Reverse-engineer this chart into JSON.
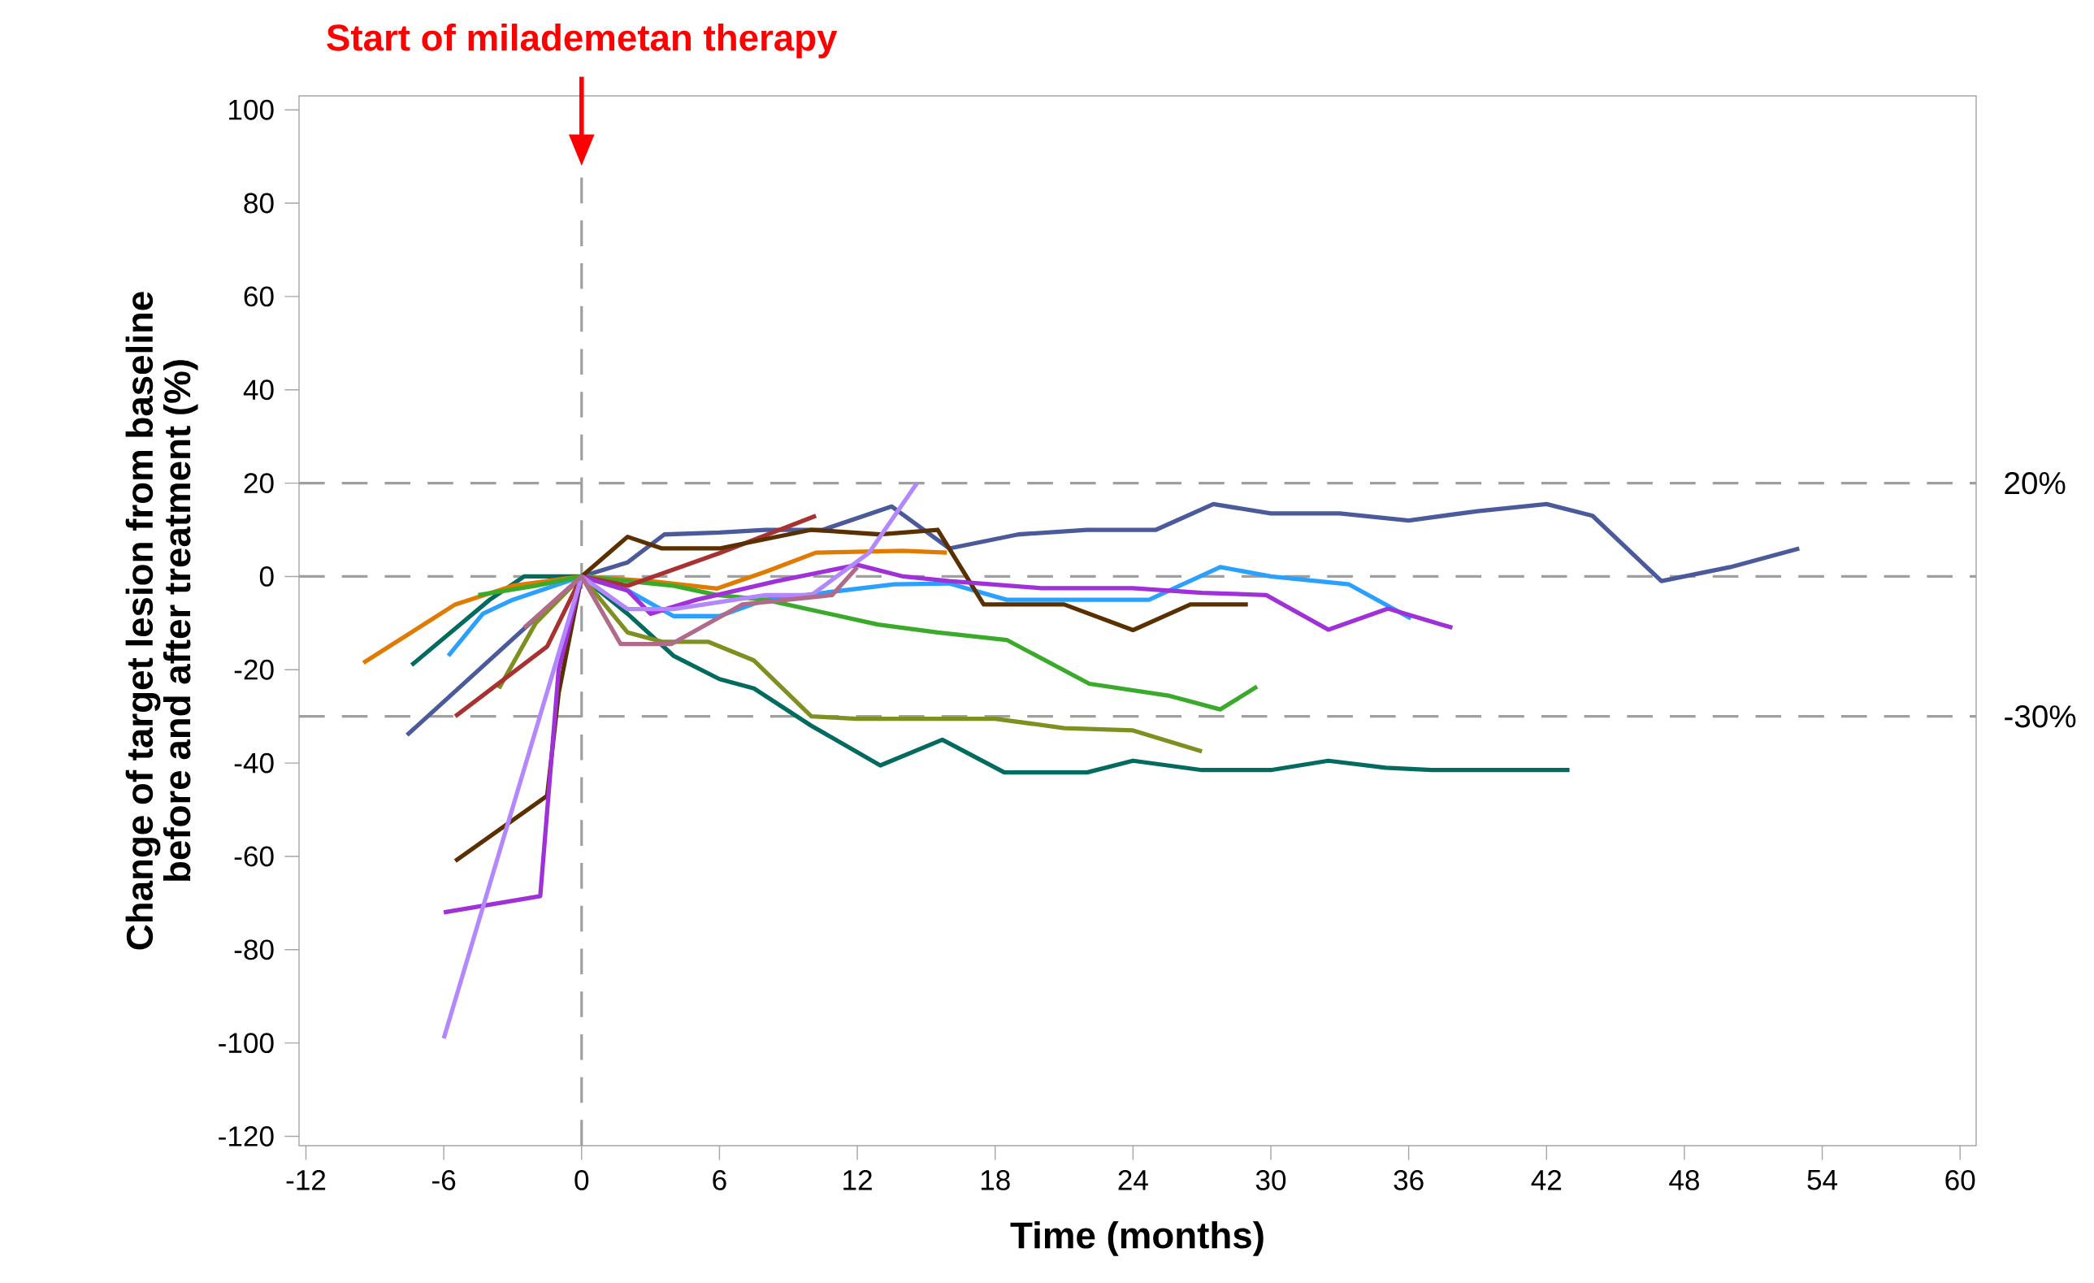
{
  "chart_data": {
    "type": "line",
    "xlabel": "Time (months)",
    "ylabel": "Change of target lesion from baseline before and after treatment (%)",
    "annotations": [
      {
        "text": "Start of milademetan therapy",
        "x": 0,
        "y": 88
      }
    ],
    "xlim": [
      -12.3,
      60.7
    ],
    "ylim": [
      -122,
      103
    ],
    "xticks": [
      -12,
      -6,
      0,
      6,
      12,
      18,
      24,
      30,
      36,
      42,
      48,
      54,
      60
    ],
    "yticks": [
      -120,
      -100,
      -80,
      -60,
      -40,
      -20,
      0,
      20,
      40,
      60,
      80,
      100
    ],
    "ref_lines": [
      {
        "axis": "y",
        "value": 20,
        "label": "20%",
        "line_style": "dashed"
      },
      {
        "axis": "y",
        "value": 0,
        "line_style": "dashed"
      },
      {
        "axis": "y",
        "value": -30,
        "label": "-30%",
        "line_style": "dashed"
      },
      {
        "axis": "x",
        "value": 0,
        "line_style": "dashed"
      }
    ],
    "series": [
      {
        "color": "#4a5a9a",
        "x": [
          -7.6,
          0,
          2,
          3.6,
          6,
          8,
          10.5,
          13.5,
          16,
          19,
          22,
          25,
          27.5,
          30,
          33,
          36,
          39,
          42,
          44,
          47,
          50,
          53
        ],
        "values": [
          -34,
          0,
          3,
          9,
          9.4,
          10,
          10,
          15,
          6,
          9,
          10,
          10,
          15.5,
          13.5,
          13.5,
          12,
          14,
          15.5,
          13,
          -1,
          2,
          6
        ]
      },
      {
        "color": "#006b5e",
        "x": [
          -7.4,
          -4,
          -2.5,
          0,
          2,
          4,
          6,
          7.5,
          10,
          13,
          15.7,
          18.4,
          22,
          24,
          27,
          30,
          32.5,
          35,
          37,
          43
        ],
        "values": [
          -19,
          -5,
          0,
          0,
          -8,
          -17,
          -22,
          -24,
          -32,
          -40.5,
          -35,
          -42,
          -42,
          -39.5,
          -41.5,
          -41.5,
          -39.5,
          -41,
          -41.5,
          -41.5
        ]
      },
      {
        "color": "#e07b00",
        "x": [
          -9.5,
          -5.5,
          -3,
          0,
          3,
          5.9,
          8,
          10.2,
          14,
          15.9
        ],
        "values": [
          -18.5,
          -6,
          -2,
          0,
          -1,
          -2.6,
          1,
          5.1,
          5.5,
          5.1
        ]
      },
      {
        "color": "#2aa0ff",
        "x": [
          -5.8,
          -4.3,
          -3,
          0,
          2,
          4,
          6,
          8,
          13.6,
          16,
          18.5,
          24.7,
          27.8,
          30,
          33.4,
          36.1
        ],
        "values": [
          -17,
          -8,
          -5,
          0,
          -3,
          -8.5,
          -8.5,
          -5,
          -1.7,
          -1.5,
          -5,
          -5,
          2,
          0,
          -1.7,
          -9
        ]
      },
      {
        "color": "#3aaa2a",
        "x": [
          -4.5,
          -2,
          0,
          4,
          5.9,
          8,
          12.9,
          15.5,
          18.5,
          22.1,
          25.6,
          27.8,
          29.4
        ],
        "values": [
          -4,
          -2,
          0,
          -2,
          -4,
          -5,
          -10.3,
          -12,
          -13.6,
          -23,
          -25.6,
          -28.5,
          -23.6
        ]
      },
      {
        "color": "#7f8f20",
        "x": [
          -3.6,
          -2,
          0,
          2,
          3.5,
          5.5,
          7.5,
          10,
          12,
          18,
          21,
          24,
          27
        ],
        "values": [
          -24,
          -10,
          0,
          -12,
          -14,
          -14,
          -18,
          -30,
          -30.5,
          -30.5,
          -32.5,
          -33,
          -37.5
        ]
      },
      {
        "color": "#a83232",
        "x": [
          -5.5,
          -1.5,
          0,
          2,
          6,
          10.2
        ],
        "values": [
          -30,
          -15,
          0,
          -2,
          5,
          13
        ]
      },
      {
        "color": "#5a3000",
        "x": [
          -5.5,
          -1.5,
          -1,
          0,
          2,
          3.5,
          6,
          8,
          10,
          13,
          15.5,
          17.5,
          21,
          24,
          26.5,
          29
        ],
        "values": [
          -61,
          -47,
          -25,
          0,
          8.5,
          6,
          6,
          8,
          10,
          9,
          10,
          -6,
          -6,
          -11.5,
          -6,
          -6
        ]
      },
      {
        "color": "#a030d8",
        "x": [
          -6,
          -1.8,
          -1,
          0,
          2,
          3,
          5,
          8.5,
          12,
          14,
          16,
          20,
          24,
          27,
          29.8,
          32.5,
          35.1,
          37.9
        ],
        "values": [
          -72,
          -68.5,
          -20,
          0,
          -3,
          -8,
          -5,
          -1,
          2.5,
          0,
          -1,
          -2.5,
          -2.5,
          -3.5,
          -4,
          -11.4,
          -6.9,
          -11
        ]
      },
      {
        "color": "#b388ff",
        "x": [
          -6,
          0,
          2,
          4,
          8,
          10,
          12.5,
          14.6
        ],
        "values": [
          -99,
          0,
          -7,
          -7,
          -4,
          -4,
          5,
          20
        ]
      },
      {
        "color": "#b06b8a",
        "x": [
          -2.5,
          0,
          1.7,
          3.9,
          7,
          10.9,
          12
        ],
        "values": [
          -11,
          0,
          -14.5,
          -14.5,
          -6,
          -4,
          2
        ]
      }
    ]
  }
}
